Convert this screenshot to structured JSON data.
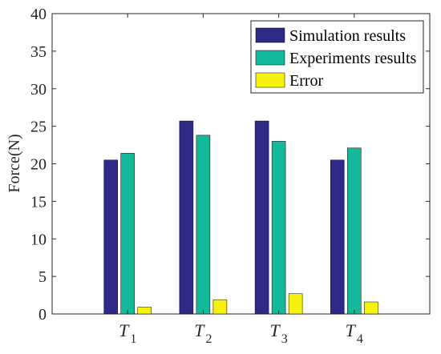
{
  "chart_data": {
    "type": "bar",
    "title": "",
    "xlabel": "",
    "ylabel": "Force(N)",
    "ylim": [
      0,
      40
    ],
    "yticks": [
      0,
      5,
      10,
      15,
      20,
      25,
      30,
      35,
      40
    ],
    "categories": [
      {
        "main": "T",
        "sub": "1"
      },
      {
        "main": "T",
        "sub": "2"
      },
      {
        "main": "T",
        "sub": "3"
      },
      {
        "main": "T",
        "sub": "4"
      }
    ],
    "series": [
      {
        "name": "Simulation results",
        "color": "#2e2a86",
        "values": [
          20.5,
          25.7,
          25.7,
          20.5
        ]
      },
      {
        "name": "Experiments results",
        "color": "#14b89a",
        "values": [
          21.4,
          23.8,
          23.0,
          22.1
        ]
      },
      {
        "name": "Error",
        "color": "#f5f20f",
        "values": [
          0.9,
          1.9,
          2.7,
          1.6
        ]
      }
    ],
    "grid": false,
    "legend_position": "top-right"
  }
}
